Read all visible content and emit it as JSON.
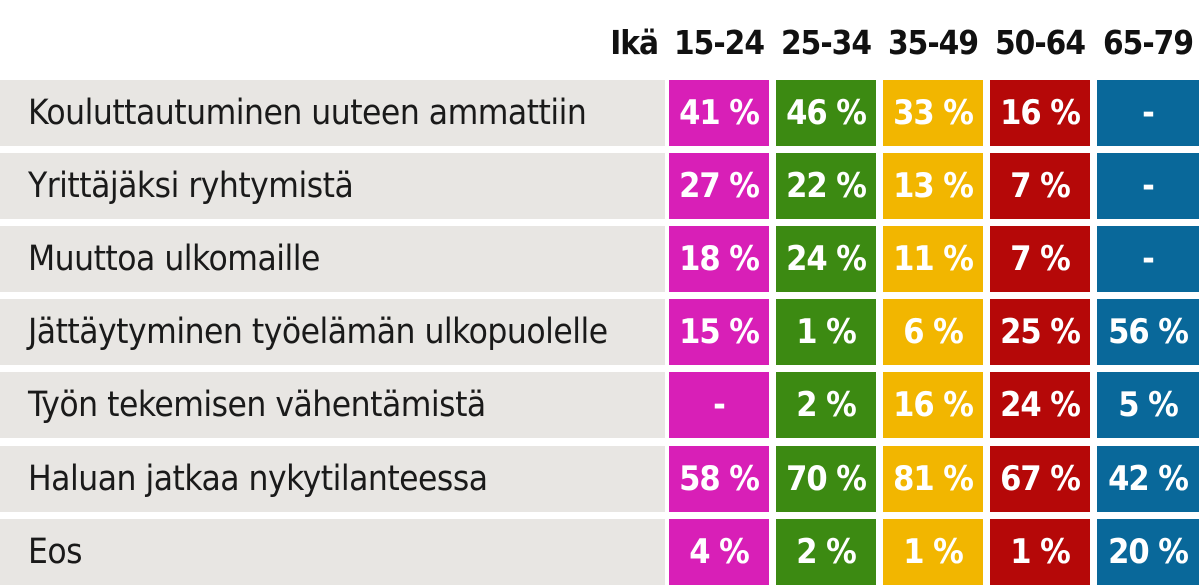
{
  "chart_data": {
    "type": "table",
    "age_label": "Ikä",
    "columns": [
      "15-24",
      "25-34",
      "35-49",
      "50-64",
      "65-79"
    ],
    "column_colors": [
      "#d81fb7",
      "#3c8a12",
      "#f2b600",
      "#b50808",
      "#09689a"
    ],
    "label_bg": "#e8e6e3",
    "rows": [
      {
        "label": "Kouluttautuminen uuteen ammattiin",
        "values": [
          "41 %",
          "46 %",
          "33 %",
          "16 %",
          "-"
        ]
      },
      {
        "label": "Yrittäjäksi ryhtymistä",
        "values": [
          "27 %",
          "22 %",
          "13 %",
          "7 %",
          "-"
        ]
      },
      {
        "label": "Muuttoa ulkomaille",
        "values": [
          "18 %",
          "24 %",
          "11 %",
          "7 %",
          "-"
        ]
      },
      {
        "label": "Jättäytyminen työelämän ulkopuolelle",
        "values": [
          "15 %",
          "1 %",
          "6 %",
          "25 %",
          "56 %"
        ]
      },
      {
        "label": "Työn tekemisen vähentämistä",
        "values": [
          "-",
          "2 %",
          "16 %",
          "24 %",
          "5 %"
        ]
      },
      {
        "label": "Haluan jatkaa nykytilanteessa",
        "values": [
          "58 %",
          "70 %",
          "81 %",
          "67 %",
          "42 %"
        ]
      },
      {
        "label": "Eos",
        "values": [
          "4 %",
          "2 %",
          "1 %",
          "1 %",
          "20 %"
        ]
      }
    ]
  }
}
